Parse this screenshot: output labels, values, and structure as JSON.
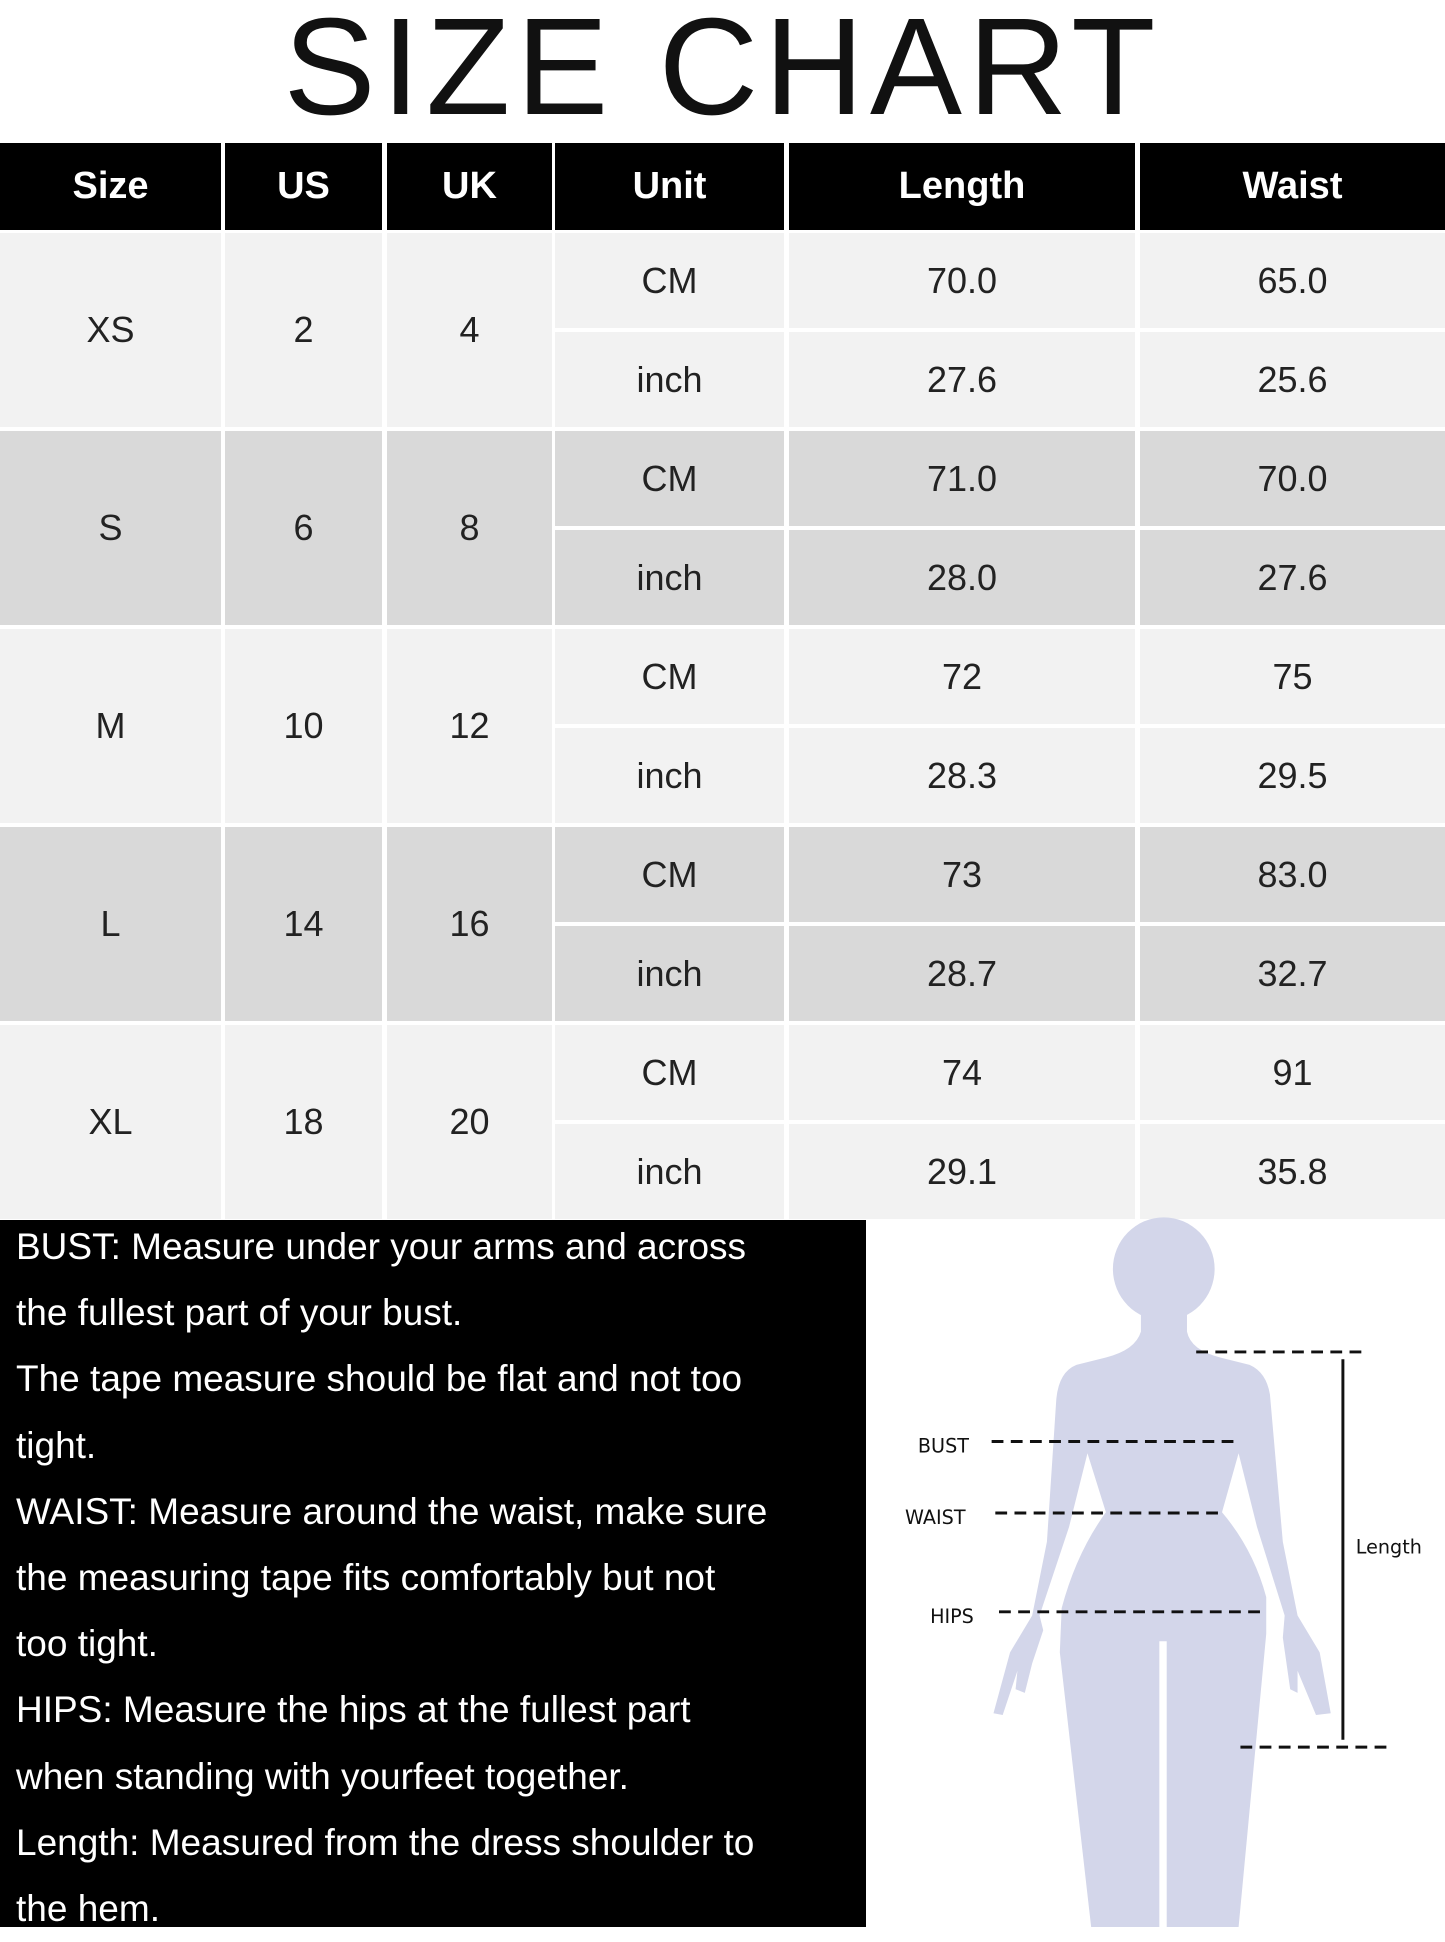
{
  "title": "SIZE CHART",
  "table": {
    "headers": [
      "Size",
      "US",
      "UK",
      "Unit",
      "Length",
      "Waist"
    ],
    "rows": [
      {
        "size": "XS",
        "us": "2",
        "uk": "4",
        "measurements": [
          {
            "unit": "CM",
            "length": "70.0",
            "waist": "65.0"
          },
          {
            "unit": "inch",
            "length": "27.6",
            "waist": "25.6"
          }
        ]
      },
      {
        "size": "S",
        "us": "6",
        "uk": "8",
        "measurements": [
          {
            "unit": "CM",
            "length": "71.0",
            "waist": "70.0"
          },
          {
            "unit": "inch",
            "length": "28.0",
            "waist": "27.6"
          }
        ]
      },
      {
        "size": "M",
        "us": "10",
        "uk": "12",
        "measurements": [
          {
            "unit": "CM",
            "length": "72",
            "waist": "75"
          },
          {
            "unit": "inch",
            "length": "28.3",
            "waist": "29.5"
          }
        ]
      },
      {
        "size": "L",
        "us": "14",
        "uk": "16",
        "measurements": [
          {
            "unit": "CM",
            "length": "73",
            "waist": "83.0"
          },
          {
            "unit": "inch",
            "length": "28.7",
            "waist": "32.7"
          }
        ]
      },
      {
        "size": "XL",
        "us": "18",
        "uk": "20",
        "measurements": [
          {
            "unit": "CM",
            "length": "74",
            "waist": "91"
          },
          {
            "unit": "inch",
            "length": "29.1",
            "waist": "35.8"
          }
        ]
      }
    ],
    "row_colors": [
      "#f2f2f2",
      "#d9d9d9"
    ],
    "header_color": "#000000"
  },
  "notes": [
    "BUST: Measure under your arms and across",
    "the fullest part of your bust.",
    "The tape measure should be flat and not too",
    "tight.",
    "WAIST: Measure around the waist, make sure",
    "the measuring tape fits comfortably but not",
    "too tight.",
    "HIPS: Measure the hips at the fullest part",
    "when standing with yourfeet together.",
    "Length: Measured from the dress shoulder to",
    "the hem."
  ],
  "figure": {
    "labels": {
      "bust": "BUST",
      "waist": "WAIST",
      "hips": "HIPS",
      "length": "Length"
    },
    "silhouette_color": "#d3d6ea"
  }
}
